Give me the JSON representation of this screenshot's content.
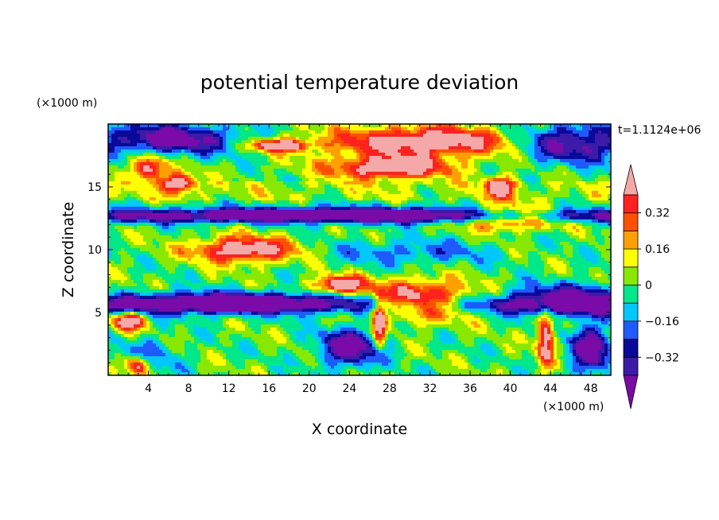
{
  "chart_data": {
    "type": "heatmap",
    "title": "potential temperature deviation",
    "time_label": "t=1.1124e+06",
    "xlabel": "X coordinate",
    "ylabel": "Z coordinate",
    "x_unit": "(×1000 m)",
    "y_unit": "(×1000 m)",
    "xlim": [
      0,
      50
    ],
    "ylim": [
      0,
      20
    ],
    "x_ticks": [
      4,
      8,
      12,
      16,
      20,
      24,
      28,
      32,
      36,
      40,
      44,
      48
    ],
    "y_ticks": [
      5,
      10,
      15
    ],
    "colorbar": {
      "levels": [
        -0.4,
        -0.32,
        -0.24,
        -0.16,
        -0.08,
        0,
        0.08,
        0.16,
        0.24,
        0.32,
        0.4
      ],
      "labeled_levels": [
        0.32,
        0.16,
        0,
        -0.16,
        -0.32
      ],
      "labels": [
        "0.32",
        "0.16",
        "0",
        "−0.16",
        "−0.32"
      ],
      "colors": [
        "#7b0ba8",
        "#3c1ba8",
        "#0a0a9a",
        "#1d5bff",
        "#00c8ff",
        "#00e88a",
        "#88e800",
        "#ffff00",
        "#ffa000",
        "#ff5000",
        "#ff2020",
        "#f4a8a8"
      ],
      "extend": "both"
    },
    "features": [
      {
        "kind": "warm",
        "x": 32,
        "z": 18.6,
        "rx": 10,
        "rz": 1.2
      },
      {
        "kind": "warm",
        "x": 17,
        "z": 18.3,
        "rx": 3,
        "rz": 0.5
      },
      {
        "kind": "warm",
        "x": 28,
        "z": 16.5,
        "rx": 6,
        "rz": 0.9
      },
      {
        "kind": "warm",
        "x": 4,
        "z": 16.5,
        "rx": 1.5,
        "rz": 1
      },
      {
        "kind": "warm",
        "x": 7,
        "z": 15.3,
        "rx": 1.6,
        "rz": 0.8
      },
      {
        "kind": "warm",
        "x": 39,
        "z": 15,
        "rx": 1.5,
        "rz": 0.8
      },
      {
        "kind": "warm",
        "x": 40,
        "z": 12.6,
        "rx": 5,
        "rz": 0.9
      },
      {
        "kind": "warm",
        "x": 13.5,
        "z": 10,
        "rx": 5,
        "rz": 1
      },
      {
        "kind": "warm",
        "x": 31,
        "z": 6,
        "rx": 5,
        "rz": 1.5
      },
      {
        "kind": "warm",
        "x": 23,
        "z": 7.2,
        "rx": 2.5,
        "rz": 0.7
      },
      {
        "kind": "warm",
        "x": 43.5,
        "z": 3,
        "rx": 0.8,
        "rz": 2.3
      },
      {
        "kind": "warm",
        "x": 27,
        "z": 4,
        "rx": 0.6,
        "rz": 1.8
      },
      {
        "kind": "warm",
        "x": 2,
        "z": 4.3,
        "rx": 1.5,
        "rz": 0.7
      },
      {
        "kind": "warm",
        "x": 3,
        "z": 0.8,
        "rx": 1.2,
        "rz": 0.8
      },
      {
        "kind": "cold",
        "x": 6,
        "z": 18.8,
        "rx": 7,
        "rz": 1.2
      },
      {
        "kind": "cold",
        "x": 46,
        "z": 18.5,
        "rx": 6,
        "rz": 1.5
      },
      {
        "kind": "cold",
        "x": 25,
        "z": 12.8,
        "rx": 25,
        "rz": 0.6
      },
      {
        "kind": "cold",
        "x": 46,
        "z": 6,
        "rx": 6,
        "rz": 1.2
      },
      {
        "kind": "cold",
        "x": 12,
        "z": 5.8,
        "rx": 11,
        "rz": 0.8
      },
      {
        "kind": "cold",
        "x": 24,
        "z": 2.2,
        "rx": 3,
        "rz": 1.5
      },
      {
        "kind": "cold",
        "x": 48,
        "z": 2,
        "rx": 2,
        "rz": 2
      },
      {
        "kind": "cool",
        "x": 30,
        "z": 9.8,
        "rx": 8,
        "rz": 1
      },
      {
        "kind": "cool",
        "x": 4,
        "z": 1.5,
        "rx": 3,
        "rz": 1.5
      }
    ]
  }
}
